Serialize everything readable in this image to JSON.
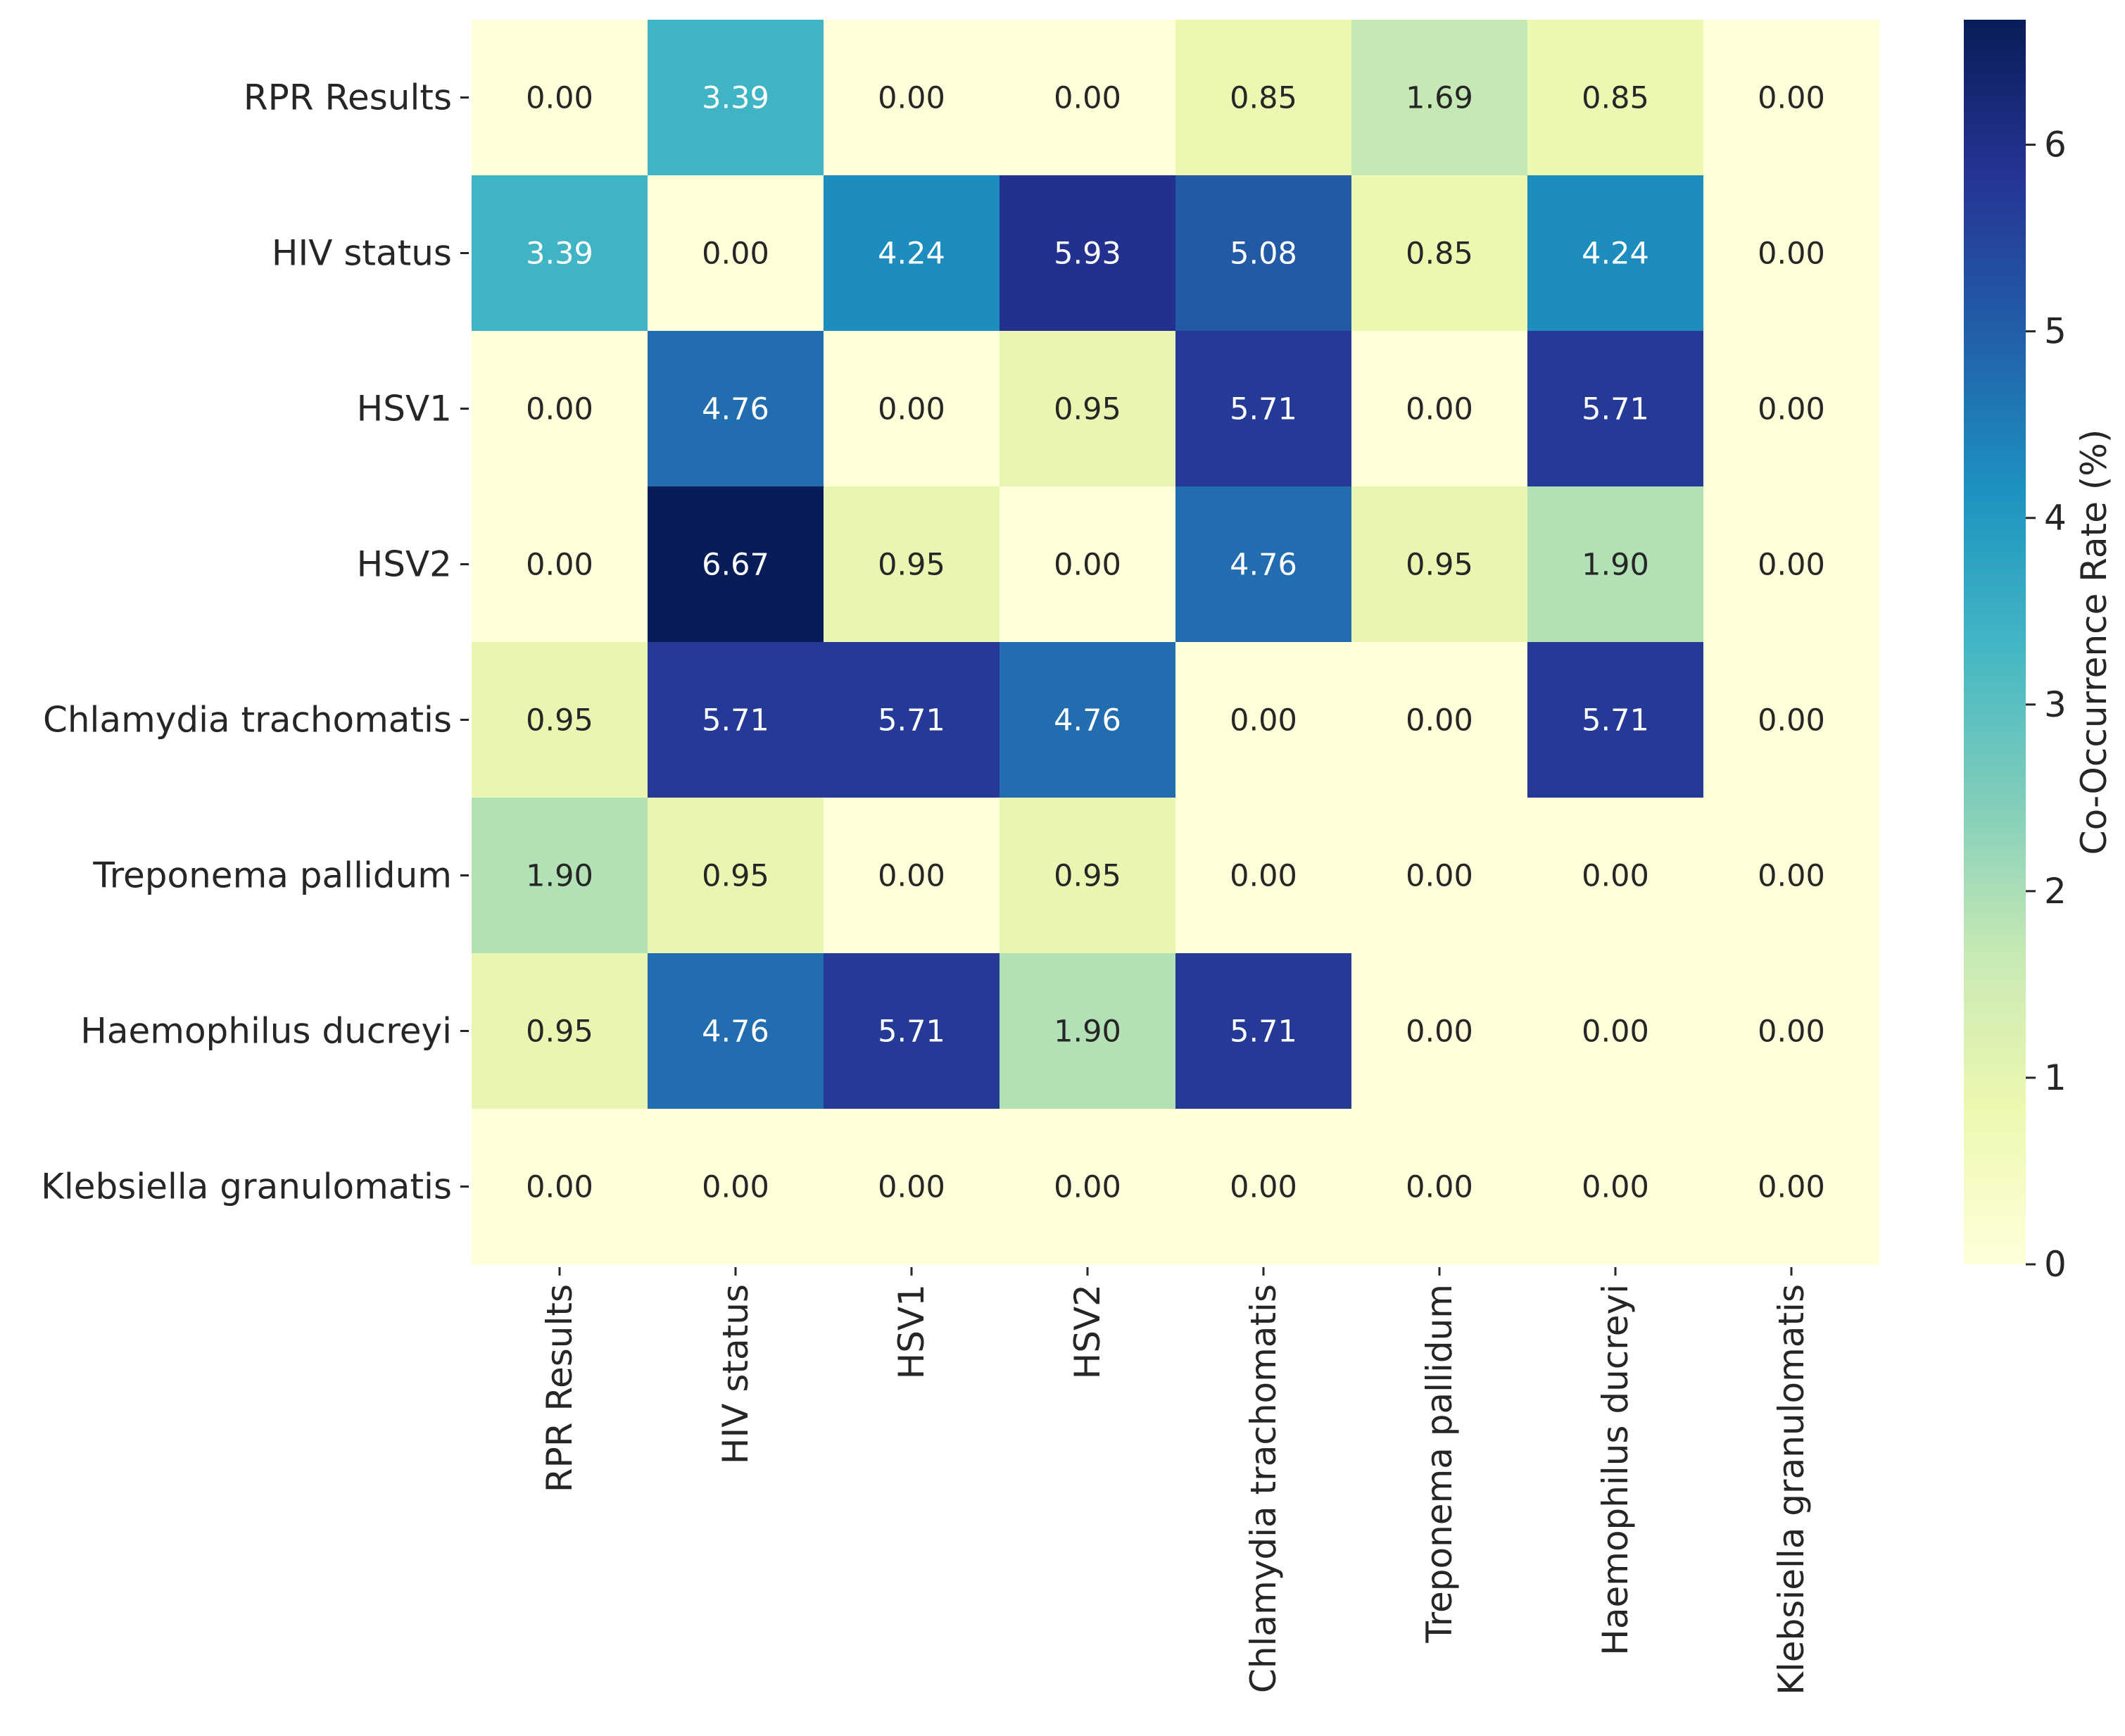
{
  "chart_data": {
    "type": "heatmap",
    "title": "",
    "xlabel": "",
    "ylabel": "",
    "rows": [
      "RPR Results",
      "HIV status",
      "HSV1",
      "HSV2",
      "Chlamydia trachomatis",
      "Treponema pallidum",
      "Haemophilus ducreyi",
      "Klebsiella granulomatis"
    ],
    "columns": [
      "RPR Results",
      "HIV status",
      "HSV1",
      "HSV2",
      "Chlamydia trachomatis",
      "Treponema pallidum",
      "Haemophilus ducreyi",
      "Klebsiella granulomatis"
    ],
    "values": [
      [
        0.0,
        3.39,
        0.0,
        0.0,
        0.85,
        1.69,
        0.85,
        0.0
      ],
      [
        3.39,
        0.0,
        4.24,
        5.93,
        5.08,
        0.85,
        4.24,
        0.0
      ],
      [
        0.0,
        4.76,
        0.0,
        0.95,
        5.71,
        0.0,
        5.71,
        0.0
      ],
      [
        0.0,
        6.67,
        0.95,
        0.0,
        4.76,
        0.95,
        1.9,
        0.0
      ],
      [
        0.95,
        5.71,
        5.71,
        4.76,
        0.0,
        0.0,
        5.71,
        0.0
      ],
      [
        1.9,
        0.95,
        0.0,
        0.95,
        0.0,
        0.0,
        0.0,
        0.0
      ],
      [
        0.95,
        4.76,
        5.71,
        1.9,
        5.71,
        0.0,
        0.0,
        0.0
      ],
      [
        0.0,
        0.0,
        0.0,
        0.0,
        0.0,
        0.0,
        0.0,
        0.0
      ]
    ],
    "value_format": "0.00",
    "colormap": "YlGnBu",
    "colorbar": {
      "label": "Co-Occurrence Rate (%)",
      "range": [
        0,
        6.67
      ],
      "ticks": [
        0,
        1,
        2,
        3,
        4,
        5,
        6
      ]
    }
  }
}
